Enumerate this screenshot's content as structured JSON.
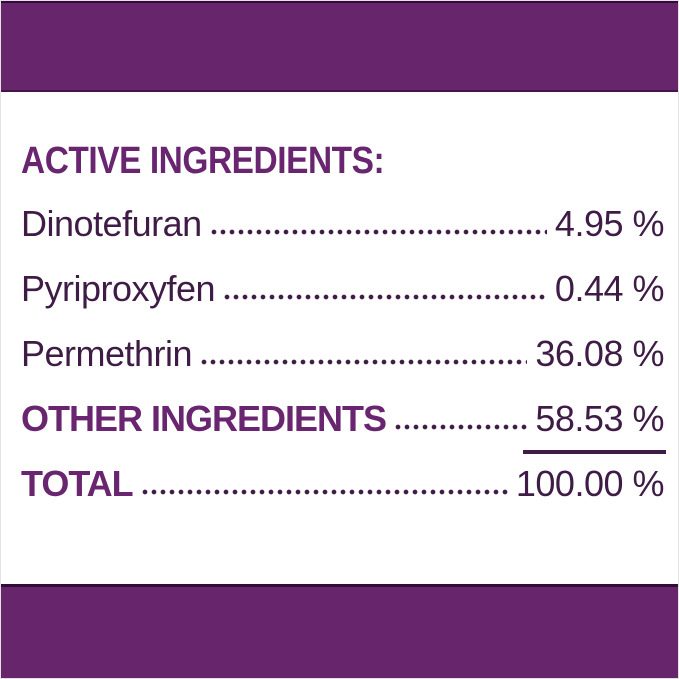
{
  "colors": {
    "bar_purple": "#67266b",
    "bar_edge": "#330b38",
    "heading_purple": "#692570",
    "text_plum": "#3f1c45",
    "page_bg": "#ffffff"
  },
  "panel": {
    "heading": "ACTIVE INGREDIENTS:",
    "rows": [
      {
        "label": "Dinotefuran",
        "value": "4.95 %",
        "style": "regular"
      },
      {
        "label": "Pyriproxyfen",
        "value": "0.44 %",
        "style": "regular"
      },
      {
        "label": "Permethrin",
        "value": "36.08 %",
        "style": "regular"
      },
      {
        "label": "OTHER INGREDIENTS",
        "value": "58.53 %",
        "style": "bold",
        "value_underlined": true
      },
      {
        "label": "TOTAL",
        "value": "100.00 %",
        "style": "bold"
      }
    ]
  }
}
